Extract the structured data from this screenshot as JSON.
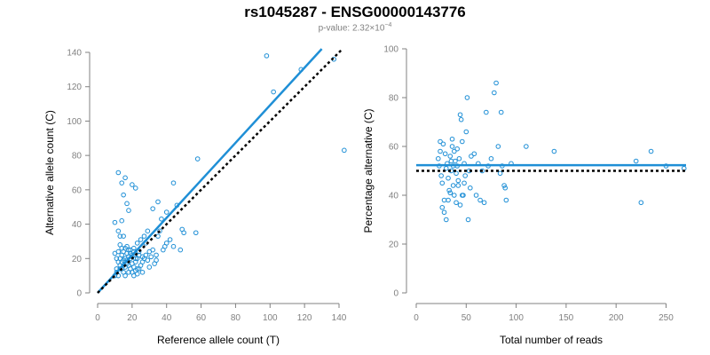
{
  "header": {
    "title": "rs1045287 - ENSG00000143776",
    "pvalue_prefix": "p-value: 2.32×10",
    "pvalue_exponent": "−4"
  },
  "colors": {
    "points": "#1f8fd6",
    "fit": "#1f8fd6",
    "reference": "#000000",
    "axis": "#808080"
  },
  "chart_data": [
    {
      "type": "scatter",
      "xlabel": "Reference allele count (T)",
      "ylabel": "Alternative allele count (C)",
      "xlim": [
        0,
        140
      ],
      "ylim": [
        0,
        140
      ],
      "xticks": [
        0,
        20,
        40,
        60,
        80,
        100,
        120,
        140
      ],
      "yticks": [
        0,
        20,
        40,
        60,
        80,
        100,
        120,
        140
      ],
      "grid": false,
      "lines": [
        {
          "kind": "fit",
          "x": [
            0,
            130
          ],
          "y": [
            0,
            142
          ]
        },
        {
          "kind": "reference",
          "x": [
            0,
            142
          ],
          "y": [
            0,
            142
          ]
        }
      ],
      "points": [
        [
          10,
          41
        ],
        [
          12,
          70
        ],
        [
          14,
          64
        ],
        [
          16,
          67
        ],
        [
          20,
          63
        ],
        [
          22,
          61
        ],
        [
          18,
          48
        ],
        [
          14,
          42
        ],
        [
          12,
          36
        ],
        [
          13,
          33
        ],
        [
          15,
          33
        ],
        [
          17,
          27
        ],
        [
          19,
          25
        ],
        [
          21,
          26
        ],
        [
          23,
          29
        ],
        [
          25,
          31
        ],
        [
          27,
          33
        ],
        [
          29,
          36
        ],
        [
          28,
          29
        ],
        [
          24,
          22
        ],
        [
          26,
          21
        ],
        [
          10,
          23
        ],
        [
          11,
          20
        ],
        [
          12,
          18
        ],
        [
          13,
          16
        ],
        [
          14,
          14
        ],
        [
          15,
          12
        ],
        [
          16,
          10
        ],
        [
          17,
          19
        ],
        [
          18,
          21
        ],
        [
          19,
          23
        ],
        [
          20,
          17
        ],
        [
          21,
          15
        ],
        [
          22,
          13
        ],
        [
          23,
          11
        ],
        [
          11,
          12
        ],
        [
          12,
          10
        ],
        [
          13,
          14
        ],
        [
          14,
          22
        ],
        [
          15,
          24
        ],
        [
          16,
          26
        ],
        [
          18,
          16
        ],
        [
          19,
          14
        ],
        [
          20,
          12
        ],
        [
          21,
          10
        ],
        [
          22,
          18
        ],
        [
          23,
          20
        ],
        [
          24,
          24
        ],
        [
          25,
          16
        ],
        [
          26,
          18
        ],
        [
          27,
          20
        ],
        [
          28,
          22
        ],
        [
          29,
          19
        ],
        [
          30,
          15
        ],
        [
          31,
          21
        ],
        [
          32,
          25
        ],
        [
          33,
          17
        ],
        [
          34,
          19
        ],
        [
          35,
          33
        ],
        [
          36,
          36
        ],
        [
          38,
          25
        ],
        [
          39,
          27
        ],
        [
          40,
          29
        ],
        [
          42,
          31
        ],
        [
          32,
          49
        ],
        [
          35,
          53
        ],
        [
          40,
          47
        ],
        [
          44,
          64
        ],
        [
          46,
          51
        ],
        [
          49,
          37
        ],
        [
          50,
          35
        ],
        [
          48,
          25
        ],
        [
          44,
          27
        ],
        [
          37,
          43
        ],
        [
          58,
          78
        ],
        [
          57,
          35
        ],
        [
          34,
          22
        ],
        [
          30,
          24
        ],
        [
          26,
          12
        ],
        [
          24,
          14
        ],
        [
          17,
          52
        ],
        [
          15,
          57
        ],
        [
          98,
          138
        ],
        [
          102,
          117
        ],
        [
          118,
          130
        ],
        [
          137,
          136
        ],
        [
          143,
          83
        ],
        [
          10,
          10
        ],
        [
          11,
          14
        ],
        [
          12,
          24
        ],
        [
          13,
          20
        ],
        [
          14,
          18
        ],
        [
          15,
          16
        ],
        [
          16,
          15
        ],
        [
          17,
          17
        ],
        [
          18,
          12
        ],
        [
          19,
          20
        ],
        [
          20,
          22
        ],
        [
          21,
          24
        ],
        [
          22,
          20
        ],
        [
          23,
          14
        ],
        [
          16,
          20
        ],
        [
          17,
          23
        ],
        [
          18,
          25
        ],
        [
          15,
          19
        ],
        [
          14,
          26
        ],
        [
          13,
          28
        ]
      ]
    },
    {
      "type": "scatter",
      "xlabel": "Total number of reads",
      "ylabel": "Percentage alternative (C)",
      "xlim": [
        0,
        270
      ],
      "ylim": [
        0,
        100
      ],
      "xticks": [
        0,
        50,
        100,
        150,
        200,
        250
      ],
      "yticks": [
        0,
        20,
        40,
        60,
        80,
        100
      ],
      "grid": false,
      "lines": [
        {
          "kind": "fit",
          "x": [
            0,
            270
          ],
          "y": [
            52.3,
            52.3
          ]
        },
        {
          "kind": "reference",
          "x": [
            0,
            270
          ],
          "y": [
            50,
            50
          ]
        }
      ],
      "points": [
        [
          22,
          55
        ],
        [
          23,
          52
        ],
        [
          24,
          58
        ],
        [
          25,
          48
        ],
        [
          26,
          45
        ],
        [
          27,
          61
        ],
        [
          28,
          38
        ],
        [
          29,
          57
        ],
        [
          30,
          51
        ],
        [
          31,
          53
        ],
        [
          32,
          47
        ],
        [
          33,
          42
        ],
        [
          34,
          56
        ],
        [
          35,
          50
        ],
        [
          36,
          60
        ],
        [
          37,
          44
        ],
        [
          38,
          40
        ],
        [
          39,
          54
        ],
        [
          40,
          49
        ],
        [
          41,
          52
        ],
        [
          42,
          46
        ],
        [
          43,
          55
        ],
        [
          44,
          73
        ],
        [
          45,
          71
        ],
        [
          46,
          62
        ],
        [
          47,
          40
        ],
        [
          48,
          45
        ],
        [
          49,
          48
        ],
        [
          50,
          66
        ],
        [
          51,
          80
        ],
        [
          52,
          30
        ],
        [
          53,
          50
        ],
        [
          54,
          43
        ],
        [
          55,
          56
        ],
        [
          58,
          57
        ],
        [
          60,
          40
        ],
        [
          62,
          53
        ],
        [
          64,
          38
        ],
        [
          66,
          50
        ],
        [
          68,
          37
        ],
        [
          70,
          74
        ],
        [
          72,
          52
        ],
        [
          75,
          55
        ],
        [
          78,
          82
        ],
        [
          80,
          86
        ],
        [
          82,
          60
        ],
        [
          84,
          49
        ],
        [
          85,
          74
        ],
        [
          86,
          52
        ],
        [
          88,
          44
        ],
        [
          89,
          43
        ],
        [
          90,
          38
        ],
        [
          95,
          53
        ],
        [
          110,
          60
        ],
        [
          138,
          58
        ],
        [
          220,
          54
        ],
        [
          225,
          37
        ],
        [
          235,
          58
        ],
        [
          250,
          52
        ],
        [
          268,
          51
        ],
        [
          24,
          62
        ],
        [
          26,
          35
        ],
        [
          28,
          33
        ],
        [
          30,
          30
        ],
        [
          32,
          38
        ],
        [
          34,
          41
        ],
        [
          36,
          63
        ],
        [
          38,
          58
        ],
        [
          40,
          37
        ],
        [
          42,
          44
        ],
        [
          44,
          36
        ],
        [
          46,
          40
        ],
        [
          48,
          53
        ],
        [
          35,
          54
        ],
        [
          37,
          52
        ],
        [
          41,
          59
        ]
      ]
    }
  ]
}
